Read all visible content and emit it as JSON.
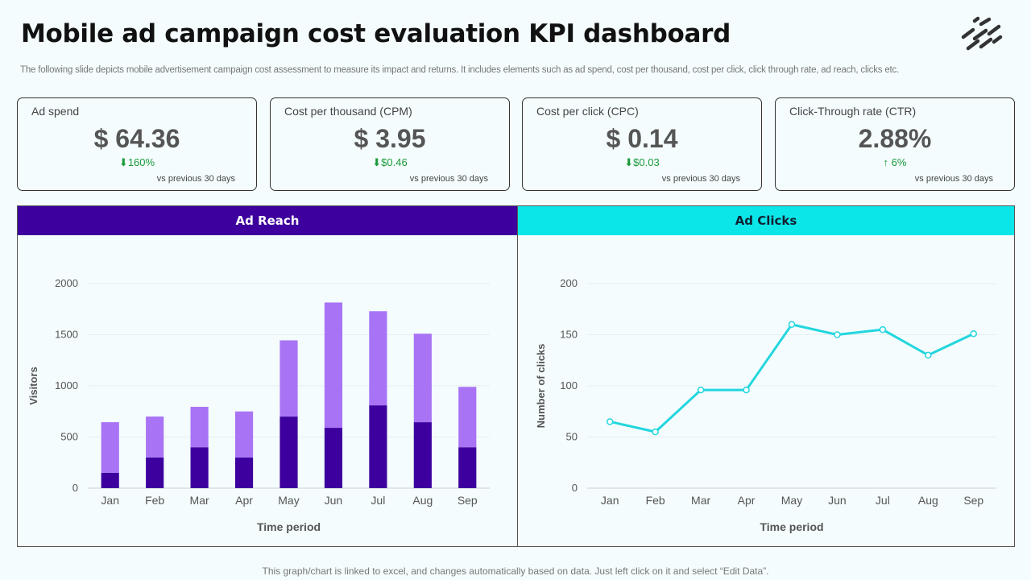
{
  "header": {
    "title": "Mobile ad campaign cost evaluation KPI dashboard",
    "subtitle": "The following slide depicts mobile advertisement campaign cost assessment to measure its impact and returns. It includes elements such as ad spend, cost per thousand, cost per click, click through rate, ad reach, clicks etc."
  },
  "kpis": [
    {
      "label": "Ad spend",
      "value": "$ 64.36",
      "change": "⬇160%",
      "foot": "vs previous 30 days"
    },
    {
      "label": "Cost per thousand (CPM)",
      "value": "$ 3.95",
      "change": "⬇$0.46",
      "foot": "vs previous 30 days"
    },
    {
      "label": "Cost per click (CPC)",
      "value": "$ 0.14",
      "change": "⬇$0.03",
      "foot": "vs previous 30 days"
    },
    {
      "label": "Click-Through  rate (CTR)",
      "value": "2.88%",
      "change": "↑  6%",
      "foot": "vs previous 30 days"
    }
  ],
  "panels": {
    "reach_title": "Ad Reach",
    "clicks_title": "Ad Clicks"
  },
  "footer": "This graph/chart is linked to excel,  and changes automatically based on data. Just left click on it and select “Edit Data”.",
  "colors": {
    "reach_dark": "#3d009e",
    "reach_light": "#a874f5",
    "clicks_line": "#22d6de",
    "change_green": "#1a9a3a"
  },
  "chart_data": [
    {
      "type": "bar",
      "stacked": true,
      "categories": [
        "Jan",
        "Feb",
        "Mar",
        "Apr",
        "May",
        "Jun",
        "Jul",
        "Aug",
        "Sep"
      ],
      "series": [
        {
          "values": [
            150,
            300,
            400,
            300,
            700,
            590,
            810,
            645,
            400
          ]
        },
        {
          "values": [
            495,
            400,
            395,
            450,
            745,
            1225,
            920,
            865,
            590
          ]
        }
      ],
      "xlabel": "Time period",
      "ylabel": "Visitors",
      "ylim": [
        0,
        2000
      ],
      "yticks": [
        0,
        500,
        1000,
        1500,
        2000
      ],
      "grid": true
    },
    {
      "type": "line",
      "categories": [
        "Jan",
        "Feb",
        "Mar",
        "Apr",
        "May",
        "Jun",
        "Jul",
        "Aug",
        "Sep"
      ],
      "series": [
        {
          "values": [
            65,
            55,
            96,
            96,
            160,
            150,
            155,
            130,
            151
          ]
        }
      ],
      "xlabel": "Time period",
      "ylabel": "Number of clicks",
      "ylim": [
        0,
        200
      ],
      "yticks": [
        0,
        50,
        100,
        150,
        200
      ],
      "grid": true
    }
  ]
}
